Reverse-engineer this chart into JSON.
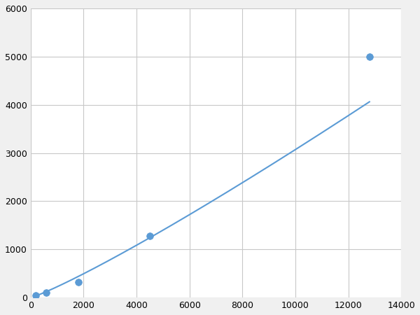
{
  "x_points": [
    200,
    600,
    1800,
    4500,
    12800
  ],
  "y_points": [
    50,
    100,
    320,
    1280,
    5000
  ],
  "line_color": "#5b9bd5",
  "marker_color": "#5b9bd5",
  "marker_size": 7,
  "line_width": 1.5,
  "xlim": [
    0,
    14000
  ],
  "ylim": [
    0,
    6000
  ],
  "xticks": [
    0,
    2000,
    4000,
    6000,
    8000,
    10000,
    12000,
    14000
  ],
  "yticks": [
    0,
    1000,
    2000,
    3000,
    4000,
    5000,
    6000
  ],
  "grid_color": "#c8c8c8",
  "background_color": "#ffffff",
  "figure_bg": "#f0f0f0"
}
